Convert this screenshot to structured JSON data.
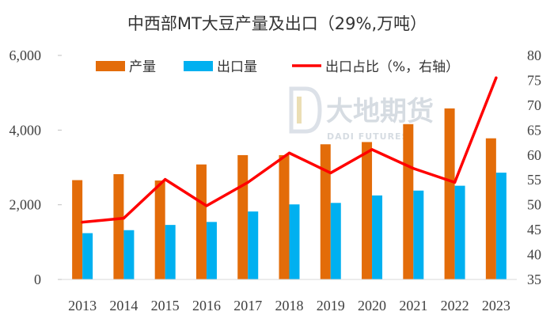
{
  "chart_data": {
    "type": "bar",
    "title": "中西部MT大豆产量及出口（29%,万吨）",
    "categories": [
      "2013",
      "2014",
      "2015",
      "2016",
      "2017",
      "2018",
      "2019",
      "2020",
      "2021",
      "2022",
      "2023"
    ],
    "series": [
      {
        "name": "产量",
        "type": "bar",
        "axis": "left",
        "color": "#E36C09",
        "values": [
          2660,
          2820,
          2650,
          3080,
          3330,
          3330,
          3620,
          3680,
          4160,
          4580,
          3780
        ]
      },
      {
        "name": "出口量",
        "type": "bar",
        "axis": "left",
        "color": "#00B0F0",
        "values": [
          1240,
          1320,
          1460,
          1540,
          1820,
          2010,
          2050,
          2250,
          2380,
          2510,
          2860
        ]
      },
      {
        "name": "出口占比（%，右轴）",
        "type": "line",
        "axis": "right",
        "color": "#FF0000",
        "values": [
          46.5,
          47.3,
          55.1,
          49.8,
          54.5,
          60.4,
          56.4,
          61.1,
          57.3,
          54.5,
          75.5
        ]
      }
    ],
    "left_axis": {
      "min": 0,
      "max": 6000,
      "ticks": [
        0,
        2000,
        4000,
        6000
      ],
      "tick_labels": [
        "0",
        "2,000",
        "4,000",
        "6,000"
      ]
    },
    "right_axis": {
      "min": 35,
      "max": 80,
      "ticks": [
        35,
        40,
        45,
        50,
        55,
        60,
        65,
        70,
        75,
        80
      ],
      "tick_labels": [
        "35",
        "40",
        "45",
        "50",
        "55",
        "60",
        "65",
        "70",
        "75",
        "80"
      ]
    },
    "grid": false,
    "legend_position": "top"
  },
  "watermark": {
    "main": "大地期货",
    "sub": "DADI FUTURES"
  }
}
